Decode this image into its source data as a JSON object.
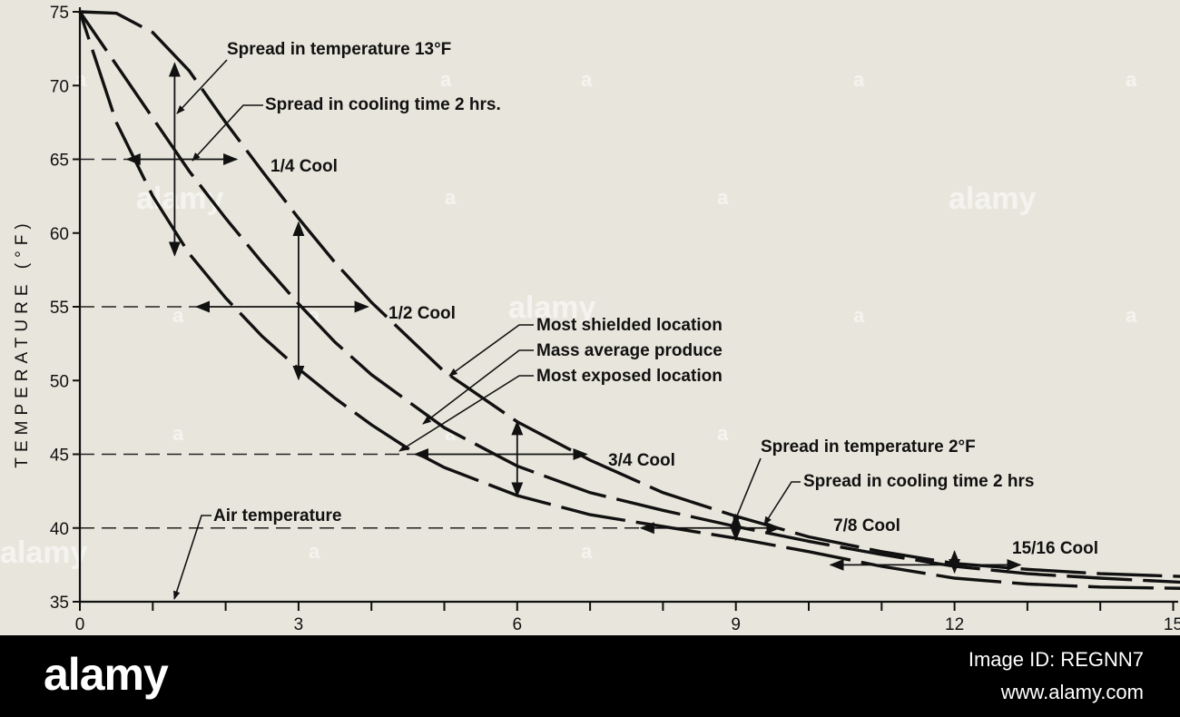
{
  "chart_data": {
    "type": "line",
    "title": "",
    "xlabel": "",
    "ylabel": "TEMPERATURE (°F)",
    "xlim": [
      0,
      15.4
    ],
    "ylim": [
      35,
      75
    ],
    "x_ticks": [
      0,
      1,
      2,
      3,
      4,
      5,
      6,
      7,
      8,
      9,
      10,
      11,
      12,
      13,
      14,
      15
    ],
    "x_tick_labels": [
      "0",
      "3",
      "6",
      "9",
      "12",
      "15"
    ],
    "x_tick_label_values": [
      0,
      3,
      6,
      9,
      12,
      15
    ],
    "y_ticks": [
      35,
      40,
      45,
      50,
      55,
      60,
      65,
      70,
      75
    ],
    "y_tick_labels": [
      "35",
      "40",
      "45",
      "50",
      "55",
      "60",
      "65",
      "70",
      "75"
    ],
    "series": [
      {
        "name": "Most shielded location",
        "x": [
          0,
          0.5,
          1,
          1.5,
          2,
          2.5,
          3,
          3.5,
          4,
          5,
          6,
          7,
          8,
          9,
          10,
          11,
          12,
          13,
          14,
          15.2
        ],
        "values": [
          75,
          74.9,
          73.6,
          71,
          67.5,
          64.2,
          61,
          58,
          55.3,
          50.6,
          47.2,
          44.6,
          42.4,
          40.8,
          39.4,
          38.4,
          37.6,
          37.2,
          36.9,
          36.7
        ]
      },
      {
        "name": "Mass average produce",
        "x": [
          0,
          0.5,
          1,
          1.5,
          2,
          2.5,
          3,
          3.5,
          4,
          5,
          6,
          7,
          8,
          9,
          10,
          11,
          12,
          13,
          14,
          15.2
        ],
        "values": [
          75,
          71.4,
          67.8,
          64.2,
          61,
          58,
          55.2,
          52.6,
          50.4,
          46.8,
          44.2,
          42.4,
          41.2,
          40.1,
          39.1,
          38.2,
          37.4,
          36.9,
          36.6,
          36.3
        ]
      },
      {
        "name": "Most exposed location",
        "x": [
          0,
          0.5,
          1,
          1.5,
          2,
          2.5,
          3,
          3.5,
          4,
          4.5,
          5,
          6,
          7,
          8,
          9,
          10,
          11,
          12,
          13,
          14,
          15.2
        ],
        "values": [
          75,
          67.5,
          62.5,
          58.6,
          55.6,
          53,
          50.8,
          48.8,
          47,
          45.4,
          44.1,
          42.2,
          40.9,
          40.1,
          39.3,
          38.4,
          37.4,
          36.6,
          36.2,
          36,
          35.9
        ]
      }
    ],
    "reference_lines": [
      {
        "y": 65,
        "label": "1/4 Cool",
        "label_x": 4.85,
        "arrow_from": 0.65,
        "arrow_to": 2.15
      },
      {
        "y": 55,
        "label": "1/2 Cool",
        "label_x": 7.4,
        "arrow_from": 1.6,
        "arrow_to": 3.95
      },
      {
        "y": 45,
        "label": "3/4 Cool",
        "label_x": 13.1,
        "arrow_from": 4.6,
        "arrow_to": 6.95
      },
      {
        "y": 40,
        "label": "7/8 Cool",
        "label_x": 18.6,
        "arrow_from": 7.7,
        "arrow_to": 9.6
      },
      {
        "y": 37.5,
        "label": "15/16 Cool",
        "label_x": 0,
        "arrow_from": 10.3,
        "arrow_to": 12.9
      }
    ],
    "air_temperature": {
      "y": 35,
      "label": "Air temperature"
    },
    "spread_markers": [
      {
        "x": 1.3,
        "y_low": 58.5,
        "y_high": 71.5
      },
      {
        "x": 3,
        "y_low": 50.1,
        "y_high": 60.7
      },
      {
        "x": 6,
        "y_low": 42.2,
        "y_high": 47.2
      },
      {
        "x": 9,
        "y_low": 39.2,
        "y_high": 40.9
      },
      {
        "x": 12,
        "y_low": 37,
        "y_high": 38.4
      }
    ],
    "annotations": [
      "Spread in temperature 13°F",
      "Spread in cooling time 2 hrs.",
      "Spread in temperature 2°F",
      "Spread in cooling time 2 hrs",
      "Most shielded location",
      "Mass average produce",
      "Most exposed location",
      "Air temperature"
    ],
    "grid": false,
    "legend": "none"
  },
  "watermark": {
    "text": "alamy",
    "short": "a"
  },
  "footer": {
    "logo": "alamy",
    "image_id": "Image ID: REGNN7",
    "site": "www.alamy.com"
  }
}
